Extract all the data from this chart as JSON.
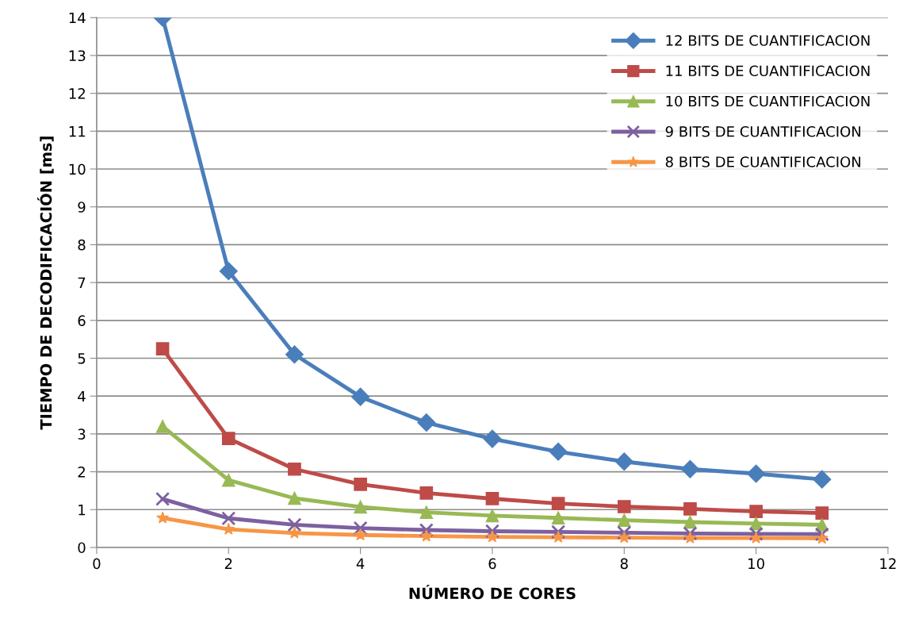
{
  "chart_data": {
    "type": "line",
    "xlabel": "NÚMERO DE CORES",
    "ylabel": "TIEMPO DE DECODIFICACIÓN [ms]",
    "x": [
      1,
      2,
      3,
      4,
      5,
      6,
      7,
      8,
      9,
      10,
      11
    ],
    "series": [
      {
        "name": "12 BITS DE CUANTIFICACION",
        "color": "#4a7ebb",
        "marker": "diamond",
        "values": [
          14,
          7.3,
          5.1,
          3.98,
          3.3,
          2.87,
          2.53,
          2.27,
          2.07,
          1.95,
          1.8
        ]
      },
      {
        "name": "11 BITS DE CUANTIFICACION",
        "color": "#be4b48",
        "marker": "square",
        "values": [
          5.25,
          2.88,
          2.07,
          1.67,
          1.44,
          1.29,
          1.16,
          1.08,
          1.02,
          0.95,
          0.91
        ]
      },
      {
        "name": "10 BITS DE CUANTIFICACION",
        "color": "#98b954",
        "marker": "triangle",
        "values": [
          3.2,
          1.78,
          1.3,
          1.07,
          0.93,
          0.84,
          0.78,
          0.72,
          0.67,
          0.63,
          0.6
        ]
      },
      {
        "name": "9 BITS DE CUANTIFICACION",
        "color": "#7d60a0",
        "marker": "cross",
        "values": [
          1.28,
          0.77,
          0.6,
          0.51,
          0.46,
          0.43,
          0.41,
          0.39,
          0.37,
          0.36,
          0.35
        ]
      },
      {
        "name": "8 BITS DE CUANTIFICACION",
        "color": "#f79646",
        "marker": "star",
        "values": [
          0.78,
          0.48,
          0.38,
          0.33,
          0.3,
          0.28,
          0.27,
          0.26,
          0.25,
          0.25,
          0.24
        ]
      }
    ],
    "xlim": [
      0,
      12
    ],
    "xticks": [
      0,
      2,
      4,
      6,
      8,
      10,
      12
    ],
    "ylim": [
      0,
      14
    ],
    "yticks": [
      0,
      1,
      2,
      3,
      4,
      5,
      6,
      7,
      8,
      9,
      10,
      11,
      12,
      13,
      14
    ],
    "grid": "y",
    "legend": "top right",
    "line_style": "solid"
  }
}
